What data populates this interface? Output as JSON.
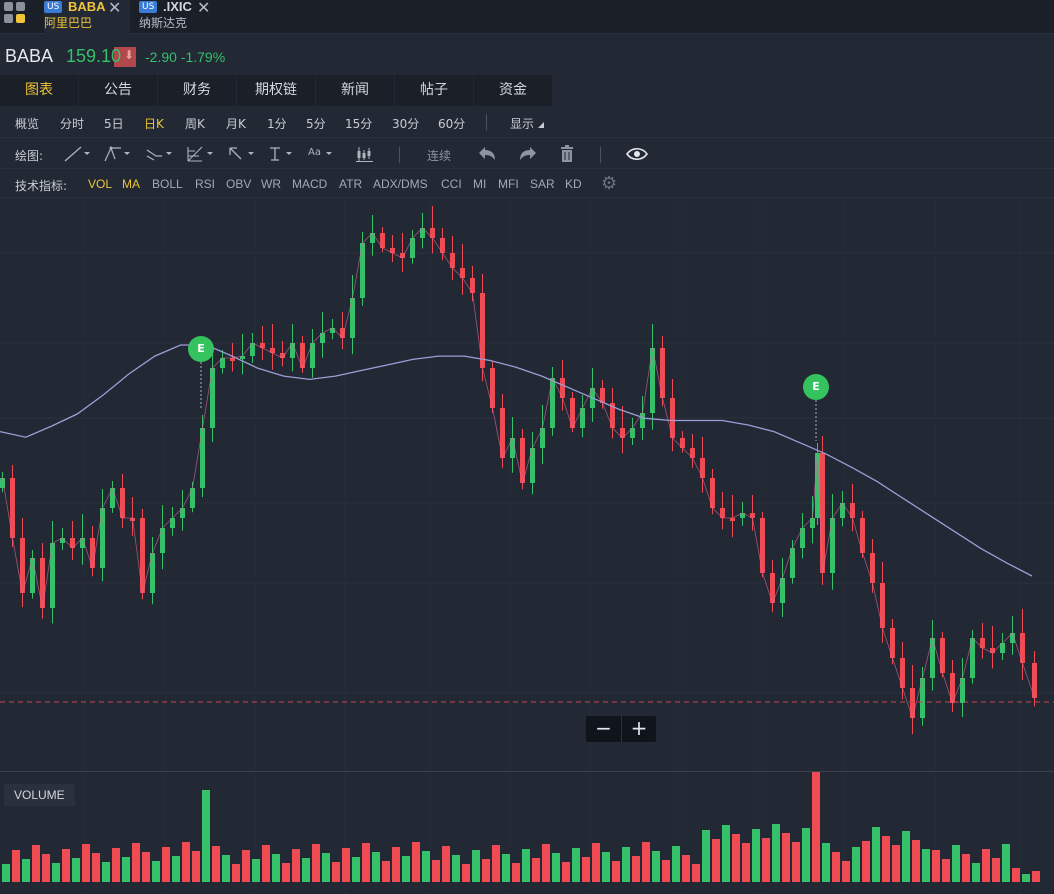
{
  "tabs": [
    {
      "market": "US",
      "symbol": "BABA",
      "name": "阿里巴巴",
      "active": true
    },
    {
      "market": "US",
      "symbol": ".IXIC",
      "name": "纳斯达克",
      "active": false
    }
  ],
  "quote": {
    "ticker": "BABA",
    "price": "159.10",
    "change": "-2.90 -1.79%",
    "price_color": "#35c06a"
  },
  "main_tabs": [
    "图表",
    "公告",
    "财务",
    "期权链",
    "新闻",
    "帖子",
    "资金"
  ],
  "period_tabs": [
    "概览",
    "分时",
    "5日",
    "日K",
    "周K",
    "月K",
    "1分",
    "5分",
    "15分",
    "30分",
    "60分"
  ],
  "active_period": "日K",
  "display_label": "显示",
  "drawing": {
    "label": "绘图:",
    "continuous_label": "连续",
    "tool_icons": [
      "line-tool-icon",
      "pitchfork-tool-icon",
      "channel-tool-icon",
      "fibonacci-tool-icon",
      "arrow-tool-icon",
      "measure-tool-icon",
      "text-tool-icon",
      "candle-type-icon",
      "undo-icon",
      "redo-icon",
      "trash-icon",
      "eye-icon"
    ],
    "text_tool_glyph": "Aa"
  },
  "indicators": {
    "label": "技术指标:",
    "items": [
      "VOL",
      "MA",
      "BOLL",
      "RSI",
      "OBV",
      "WR",
      "MACD",
      "ATR",
      "ADX/DMS",
      "CCI",
      "MI",
      "MFI",
      "SAR",
      "KD"
    ],
    "active": [
      "VOL",
      "MA"
    ]
  },
  "earnings_badges": [
    "E",
    "E"
  ],
  "volume_label": "VOLUME",
  "zoom": {
    "minus": "−",
    "plus": "+"
  },
  "colors": {
    "up": "#35c06a",
    "down": "#f04b53",
    "ma_line": "#9b9fd6",
    "active": "#f0c53a",
    "background": "#222834"
  },
  "chart_data": {
    "type": "candlestick",
    "interval": "日K",
    "last_close": 159.1,
    "earnings_markers": [
      "E",
      "E"
    ],
    "moving_average_line": [
      1.29,
      1.285,
      1.295,
      1.306,
      1.323,
      1.342,
      1.358,
      1.368,
      1.368,
      1.358,
      1.347,
      1.34,
      1.337,
      1.34,
      1.345,
      1.35,
      1.355,
      1.358,
      1.358,
      1.354,
      1.348,
      1.34,
      1.33,
      1.32,
      1.31,
      1.302,
      1.3,
      1.3,
      1.3,
      1.296,
      1.29,
      1.28,
      1.27,
      1.258,
      1.245,
      1.23,
      1.215,
      1.2,
      1.185,
      1.172,
      1.16
    ],
    "volume_note": "daily volume bars, colored by candle direction"
  }
}
